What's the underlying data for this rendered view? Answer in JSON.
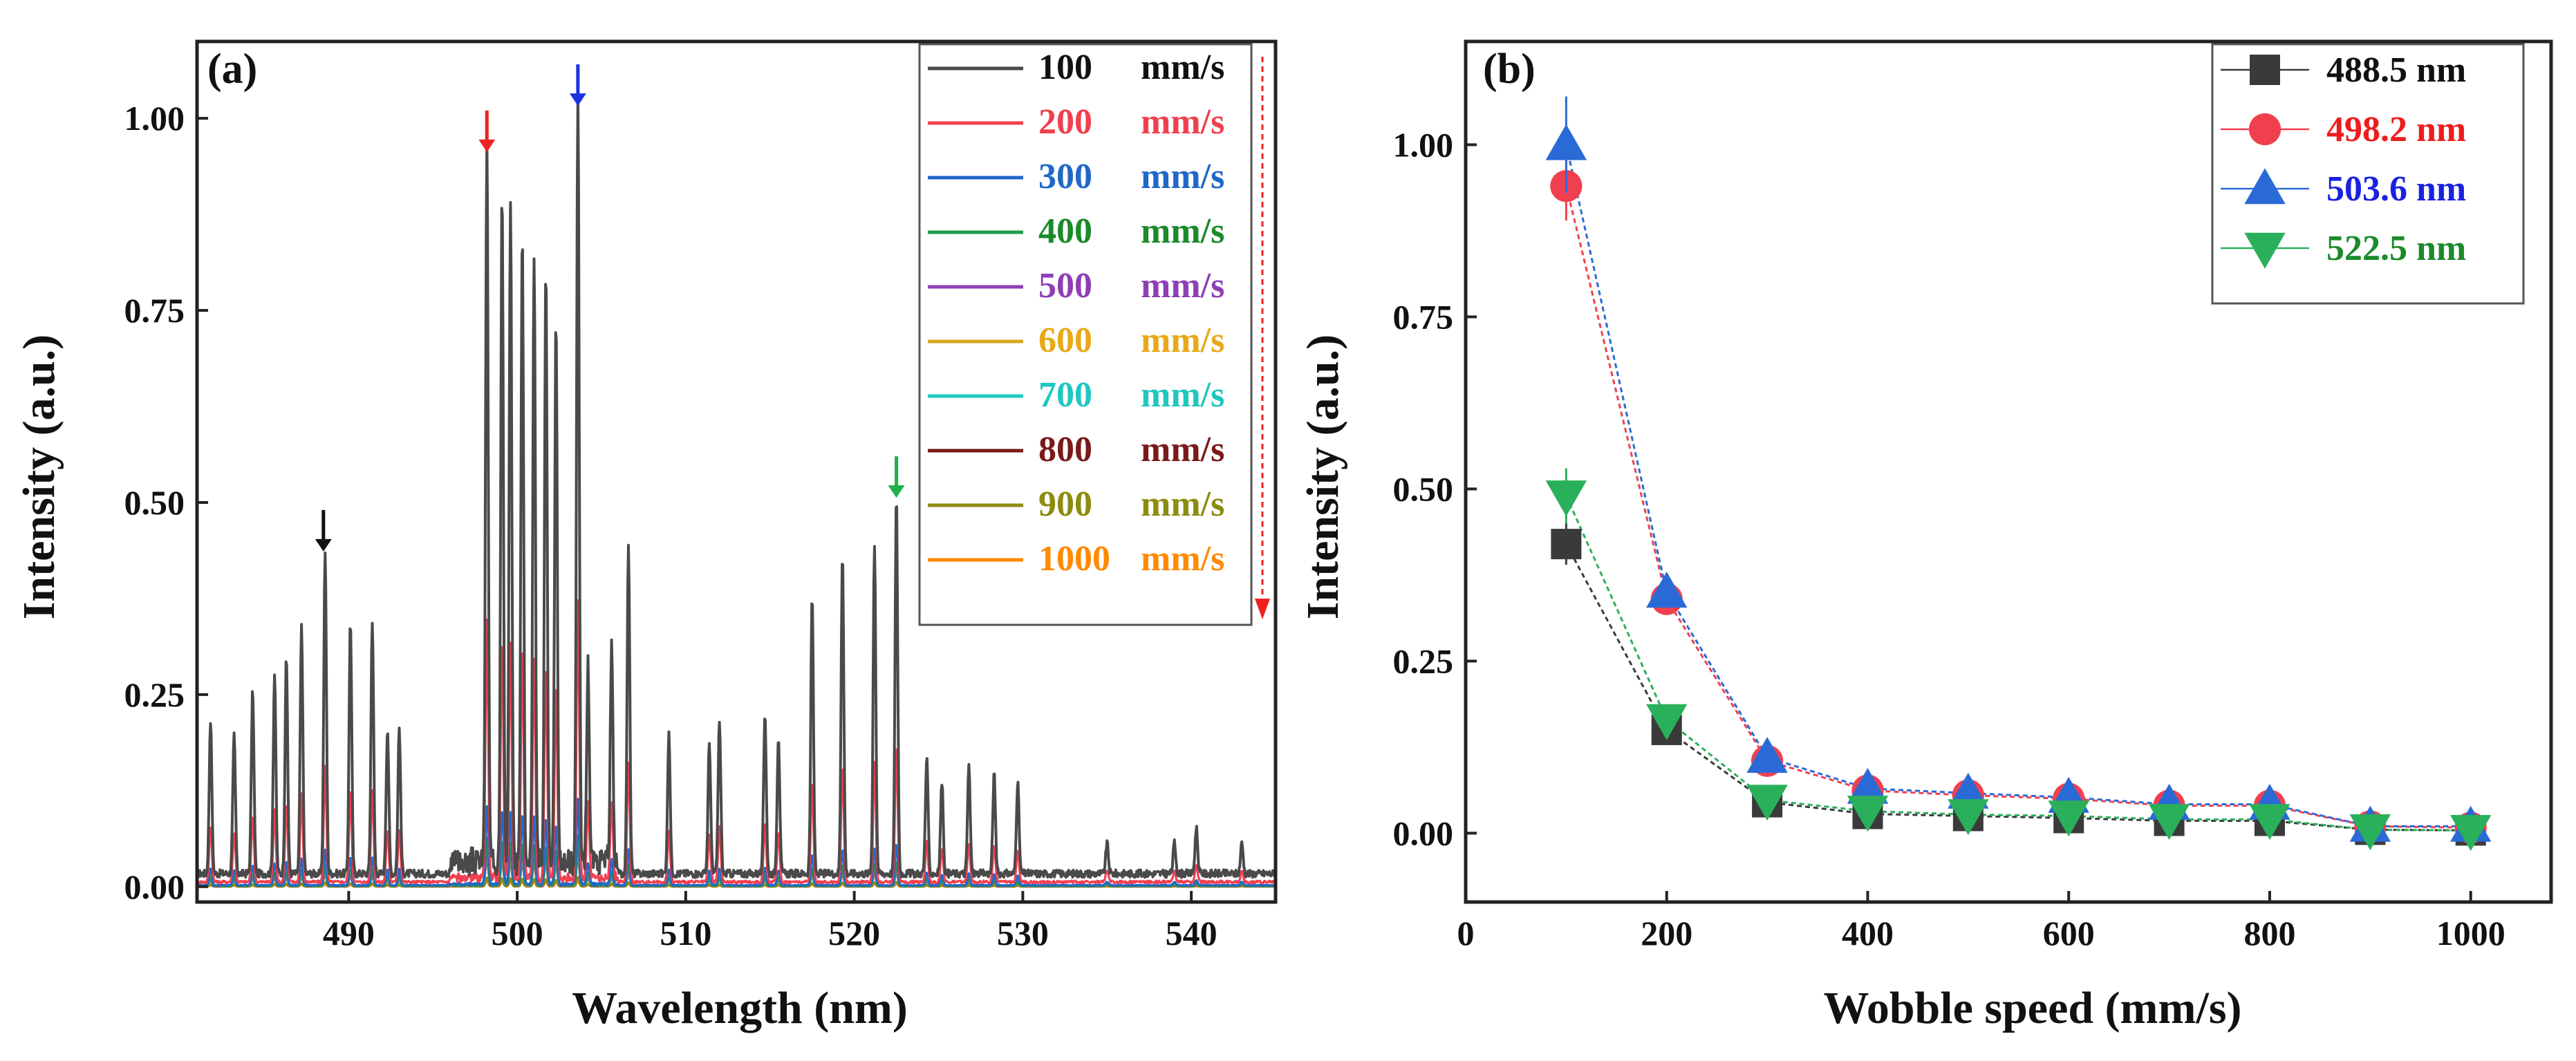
{
  "chart_data": [
    {
      "panel": "(a)",
      "type": "line",
      "xlabel": "Wavelength (nm)",
      "ylabel": "Intensity (a.u.)",
      "xlim": [
        481,
        545
      ],
      "ylim": [
        -0.02,
        1.1
      ],
      "xticks": [
        490,
        500,
        510,
        520,
        530,
        540
      ],
      "xtick_labels": [
        "490",
        "500",
        "510",
        "520",
        "530",
        "540"
      ],
      "yticks": [
        0.0,
        0.25,
        0.5,
        0.75,
        1.0
      ],
      "ytick_labels": [
        "0.00",
        "0.25",
        "0.50",
        "0.75",
        "1.00"
      ],
      "legend": [
        {
          "value": "100",
          "unit": "mm/s",
          "color": "#4a4a4a"
        },
        {
          "value": "200",
          "unit": "mm/s",
          "color": "#f04050"
        },
        {
          "value": "300",
          "unit": "mm/s",
          "color": "#1f68c8"
        },
        {
          "value": "400",
          "unit": "mm/s",
          "color": "#1e9e4a"
        },
        {
          "value": "500",
          "unit": "mm/s",
          "color": "#8e3fb5"
        },
        {
          "value": "600",
          "unit": "mm/s",
          "color": "#d9a520"
        },
        {
          "value": "700",
          "unit": "mm/s",
          "color": "#1ec8c0"
        },
        {
          "value": "800",
          "unit": "mm/s",
          "color": "#7a1a1a"
        },
        {
          "value": "900",
          "unit": "mm/s",
          "color": "#8c8c10"
        },
        {
          "value": "1000",
          "unit": "mm/s",
          "color": "#ff8a00"
        }
      ],
      "legend_label_colors": [
        "#111111",
        "#f04050",
        "#1f68c8",
        "#1a8a2a",
        "#8e3fb5",
        "#e8a818",
        "#1ec8c0",
        "#7a1a1a",
        "#8c8c10",
        "#ff8a00"
      ],
      "peaks": [
        [
          481.8,
          0.2
        ],
        [
          483.2,
          0.18
        ],
        [
          484.3,
          0.24
        ],
        [
          485.6,
          0.26
        ],
        [
          486.3,
          0.28
        ],
        [
          487.2,
          0.32
        ],
        [
          488.6,
          0.42
        ],
        [
          490.1,
          0.33
        ],
        [
          491.4,
          0.33
        ],
        [
          492.3,
          0.19
        ],
        [
          493.0,
          0.19
        ],
        [
          498.2,
          0.94
        ],
        [
          499.1,
          0.87
        ],
        [
          499.6,
          0.85
        ],
        [
          500.3,
          0.83
        ],
        [
          501.0,
          0.79
        ],
        [
          501.7,
          0.77
        ],
        [
          502.3,
          0.7
        ],
        [
          503.6,
          1.0
        ],
        [
          504.2,
          0.26
        ],
        [
          505.6,
          0.28
        ],
        [
          506.6,
          0.43
        ],
        [
          509.0,
          0.18
        ],
        [
          511.4,
          0.17
        ],
        [
          512.0,
          0.2
        ],
        [
          514.7,
          0.21
        ],
        [
          515.5,
          0.18
        ],
        [
          517.5,
          0.36
        ],
        [
          519.3,
          0.42
        ],
        [
          521.2,
          0.43
        ],
        [
          522.5,
          0.49
        ],
        [
          524.3,
          0.15
        ],
        [
          525.2,
          0.12
        ],
        [
          526.8,
          0.14
        ],
        [
          528.3,
          0.13
        ],
        [
          529.7,
          0.12
        ],
        [
          535.0,
          0.04
        ],
        [
          539.0,
          0.04
        ],
        [
          540.3,
          0.06
        ],
        [
          543.0,
          0.04
        ]
      ],
      "arrows": [
        {
          "x": 488.5,
          "color": "#111111"
        },
        {
          "x": 498.2,
          "color": "#ee2222"
        },
        {
          "x": 503.6,
          "color": "#1a33dd"
        },
        {
          "x": 522.5,
          "color": "#1fb04a"
        }
      ],
      "legend_arrow_color": "#ee2222"
    },
    {
      "panel": "(b)",
      "type": "line",
      "xlabel": "Wobble speed (mm/s)",
      "ylabel": "Intensity (a.u.)",
      "xlim": [
        0,
        1080
      ],
      "ylim": [
        -0.1,
        1.15
      ],
      "xticks": [
        0,
        200,
        400,
        600,
        800,
        1000
      ],
      "xtick_labels": [
        "0",
        "200",
        "400",
        "600",
        "800",
        "1000"
      ],
      "yticks": [
        0.0,
        0.25,
        0.5,
        0.75,
        1.0
      ],
      "ytick_labels": [
        "0.00",
        "0.25",
        "0.50",
        "0.75",
        "1.00"
      ],
      "x": [
        100,
        200,
        300,
        400,
        500,
        600,
        700,
        800,
        900,
        1000
      ],
      "series": [
        {
          "name": "488.5 nm",
          "color": "#3a3a3a",
          "label_color": "#111111",
          "marker": "square",
          "values": [
            0.42,
            0.15,
            0.045,
            0.028,
            0.025,
            0.022,
            0.018,
            0.018,
            0.005,
            0.004
          ],
          "err_first": 0.03
        },
        {
          "name": "498.2 nm",
          "color": "#f04050",
          "label_color": "#ee1c1c",
          "marker": "circle",
          "values": [
            0.94,
            0.34,
            0.105,
            0.062,
            0.055,
            0.05,
            0.04,
            0.04,
            0.01,
            0.008
          ],
          "err_first": 0.05
        },
        {
          "name": "503.6 nm",
          "color": "#2a6ad6",
          "label_color": "#1a22e0",
          "marker": "triangle-up",
          "values": [
            1.0,
            0.35,
            0.11,
            0.065,
            0.058,
            0.052,
            0.042,
            0.042,
            0.01,
            0.01
          ],
          "err_first": 0.07
        },
        {
          "name": "522.5 nm",
          "color": "#2ab05a",
          "label_color": "#1a8a2a",
          "marker": "triangle-down",
          "values": [
            0.49,
            0.165,
            0.048,
            0.032,
            0.027,
            0.025,
            0.02,
            0.02,
            0.005,
            0.004
          ],
          "err_first": 0.04
        }
      ]
    }
  ]
}
